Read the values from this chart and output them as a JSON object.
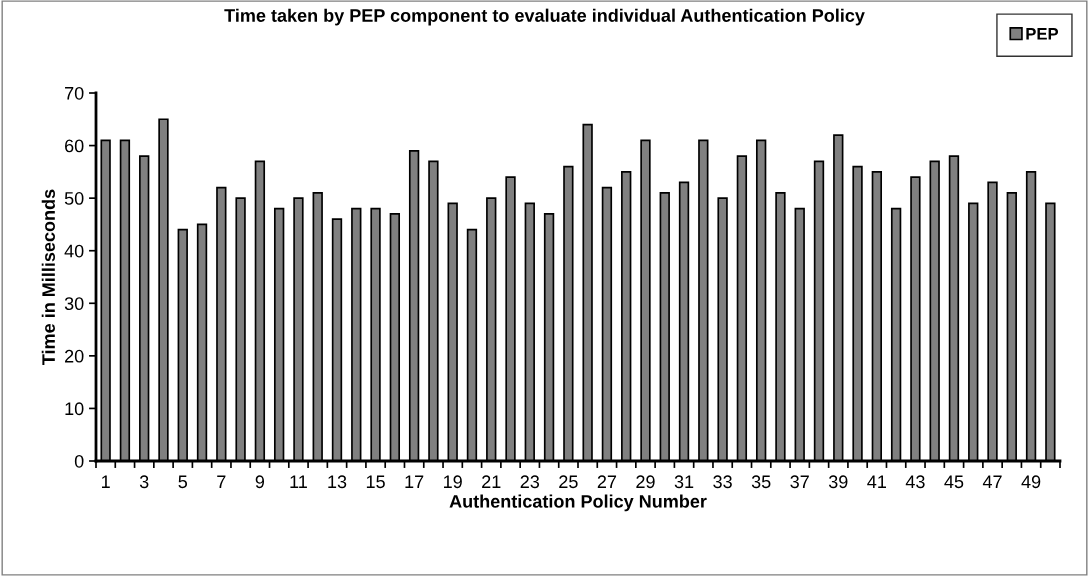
{
  "chart_data": {
    "type": "bar",
    "title": "Time taken by PEP component to evaluate individual Authentication Policy",
    "xlabel": "Authentication Policy Number",
    "ylabel": "Time in Milliseconds",
    "categories": [
      "1",
      null,
      "3",
      null,
      "5",
      null,
      "7",
      null,
      "9",
      null,
      "11",
      null,
      "13",
      null,
      "15",
      null,
      "17",
      null,
      "19",
      null,
      "21",
      null,
      "23",
      null,
      "25",
      null,
      "27",
      null,
      "29",
      null,
      "31",
      null,
      "33",
      null,
      "35",
      null,
      "37",
      null,
      "39",
      null,
      "41",
      null,
      "43",
      null,
      "45",
      null,
      "47",
      null,
      "49",
      null
    ],
    "series": [
      {
        "name": "PEP",
        "color": "#808080",
        "values": [
          61,
          61,
          58,
          65,
          44,
          45,
          52,
          50,
          57,
          48,
          50,
          51,
          46,
          48,
          48,
          47,
          59,
          57,
          49,
          44,
          50,
          54,
          49,
          47,
          56,
          64,
          52,
          55,
          61,
          51,
          53,
          61,
          50,
          58,
          61,
          51,
          48,
          57,
          62,
          56,
          55,
          48,
          54,
          57,
          58,
          49,
          53,
          51,
          55,
          49
        ]
      }
    ],
    "ylim": [
      0,
      70
    ],
    "yticks": [
      0,
      10,
      20,
      30,
      40,
      50,
      60,
      70
    ],
    "grid": false,
    "legend": "top right"
  }
}
